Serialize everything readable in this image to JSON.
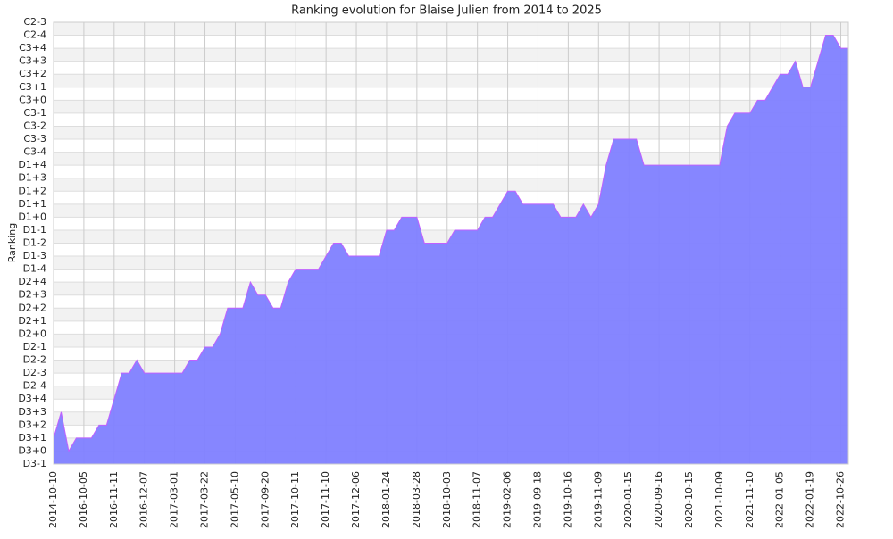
{
  "chart_data": {
    "type": "area",
    "title": "Ranking evolution for Blaise Julien from 2014 to 2025",
    "y_label": "Ranking",
    "categories": [
      "2014-10-10",
      null,
      null,
      null,
      "2016-10-05",
      null,
      null,
      null,
      "2016-11-11",
      null,
      null,
      null,
      "2016-12-07",
      null,
      null,
      null,
      "2017-03-01",
      null,
      null,
      null,
      "2017-03-22",
      null,
      null,
      null,
      "2017-05-10",
      null,
      null,
      null,
      "2017-09-20",
      null,
      null,
      null,
      "2017-10-11",
      null,
      null,
      null,
      "2017-11-10",
      null,
      null,
      null,
      "2017-12-06",
      null,
      null,
      null,
      "2018-01-24",
      null,
      null,
      null,
      "2018-03-28",
      null,
      null,
      null,
      "2018-10-03",
      null,
      null,
      null,
      "2018-11-07",
      null,
      null,
      null,
      "2019-02-06",
      null,
      null,
      null,
      "2019-09-18",
      null,
      null,
      null,
      "2019-10-16",
      null,
      null,
      null,
      "2019-11-09",
      null,
      null,
      null,
      "2020-01-15",
      null,
      null,
      null,
      "2020-09-16",
      null,
      null,
      null,
      "2020-10-15",
      null,
      null,
      null,
      "2021-10-09",
      null,
      null,
      null,
      "2021-11-10",
      null,
      null,
      null,
      "2022-01-05",
      null,
      null,
      null,
      "2022-01-19",
      null,
      null,
      null,
      "2022-10-26",
      null
    ],
    "values": [
      2,
      4,
      1,
      2,
      2,
      2,
      3,
      3,
      5,
      7,
      7,
      8,
      7,
      7,
      7,
      7,
      7,
      7,
      8,
      8,
      9,
      9,
      10,
      12,
      12,
      12,
      14,
      13,
      13,
      12,
      12,
      14,
      15,
      15,
      15,
      15,
      16,
      17,
      17,
      16,
      16,
      16,
      16,
      16,
      18,
      18,
      19,
      19,
      19,
      17,
      17,
      17,
      17,
      18,
      18,
      18,
      18,
      19,
      19,
      20,
      21,
      21,
      20,
      20,
      20,
      20,
      20,
      19,
      19,
      19,
      20,
      19,
      20,
      23,
      25,
      25,
      25,
      25,
      23,
      23,
      23,
      23,
      23,
      23,
      23,
      23,
      23,
      23,
      23,
      26,
      27,
      27,
      27,
      28,
      28,
      29,
      30,
      30,
      31,
      29,
      29,
      31,
      33,
      33,
      32,
      32
    ],
    "color": "#8080ff",
    "line_color": "#c060ff",
    "ylim": [
      0,
      34
    ],
    "yticks": [
      {
        "value": 0,
        "label": "D3-1"
      },
      {
        "value": 1,
        "label": "D3+0"
      },
      {
        "value": 2,
        "label": "D3+1"
      },
      {
        "value": 3,
        "label": "D3+2"
      },
      {
        "value": 4,
        "label": "D3+3"
      },
      {
        "value": 5,
        "label": "D3+4"
      },
      {
        "value": 6,
        "label": "D2-4"
      },
      {
        "value": 7,
        "label": "D2-3"
      },
      {
        "value": 8,
        "label": "D2-2"
      },
      {
        "value": 9,
        "label": "D2-1"
      },
      {
        "value": 10,
        "label": "D2+0"
      },
      {
        "value": 11,
        "label": "D2+1"
      },
      {
        "value": 12,
        "label": "D2+2"
      },
      {
        "value": 13,
        "label": "D2+3"
      },
      {
        "value": 14,
        "label": "D2+4"
      },
      {
        "value": 15,
        "label": "D1-4"
      },
      {
        "value": 16,
        "label": "D1-3"
      },
      {
        "value": 17,
        "label": "D1-2"
      },
      {
        "value": 18,
        "label": "D1-1"
      },
      {
        "value": 19,
        "label": "D1+0"
      },
      {
        "value": 20,
        "label": "D1+1"
      },
      {
        "value": 21,
        "label": "D1+2"
      },
      {
        "value": 22,
        "label": "D1+3"
      },
      {
        "value": 23,
        "label": "D1+4"
      },
      {
        "value": 24,
        "label": "C3-4"
      },
      {
        "value": 25,
        "label": "C3-3"
      },
      {
        "value": 26,
        "label": "C3-2"
      },
      {
        "value": 27,
        "label": "C3-1"
      },
      {
        "value": 28,
        "label": "C3+0"
      },
      {
        "value": 29,
        "label": "C3+1"
      },
      {
        "value": 30,
        "label": "C3+2"
      },
      {
        "value": 31,
        "label": "C3+3"
      },
      {
        "value": 32,
        "label": "C3+4"
      },
      {
        "value": 33,
        "label": "C2-4"
      },
      {
        "value": 34,
        "label": "C2-3"
      }
    ],
    "grid": true
  }
}
